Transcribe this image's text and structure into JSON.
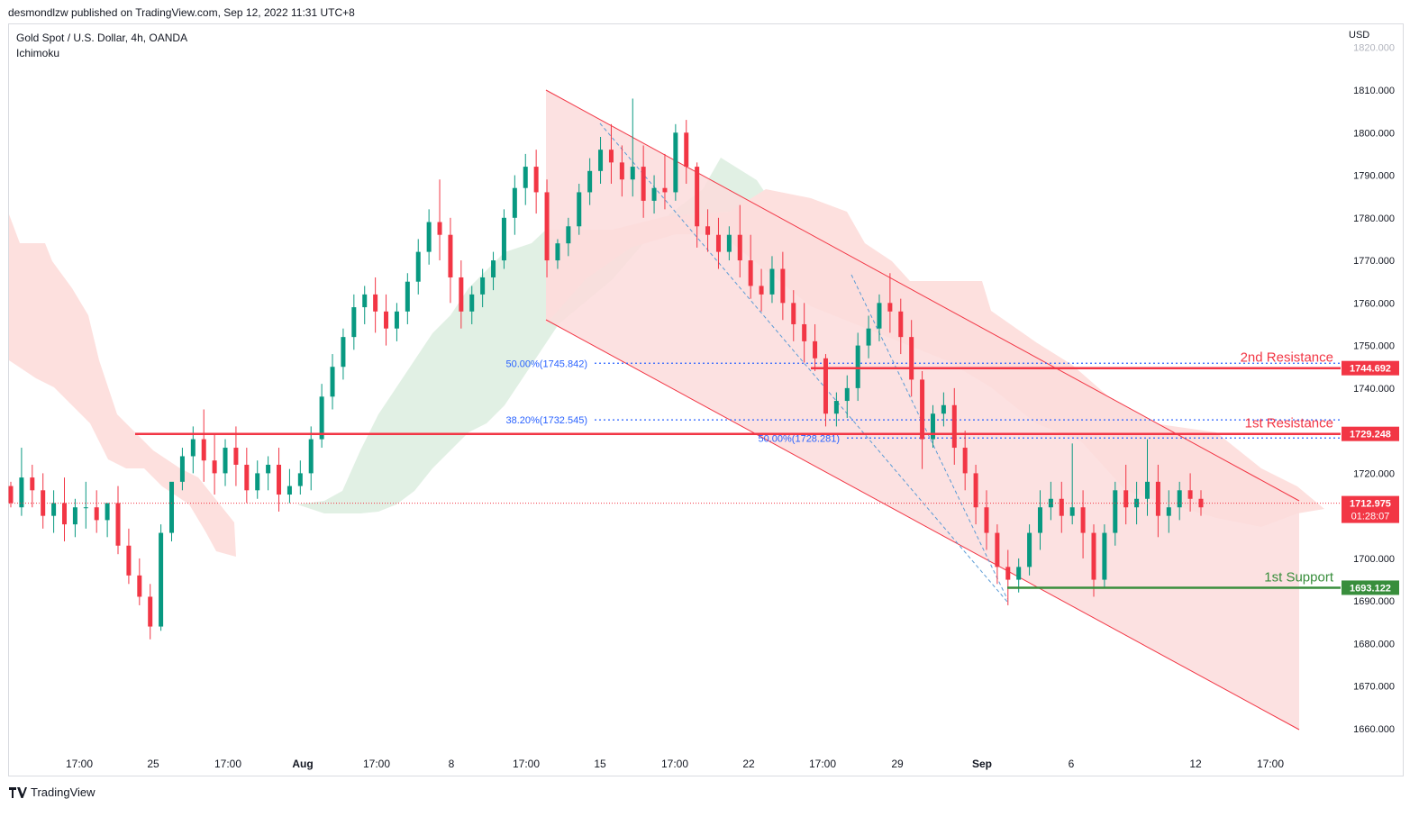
{
  "caption": "desmondlzw published on TradingView.com, Sep 12, 2022 11:31 UTC+8",
  "legend": {
    "symbol": "Gold Spot / U.S. Dollar, 4h, OANDA",
    "indicator": "Ichimoku"
  },
  "currency": "USD",
  "footer": {
    "brand": "TradingView"
  },
  "chart_data": {
    "type": "candlestick",
    "title": "Gold Spot / U.S. Dollar, 4h, OANDA",
    "y_unit": "USD",
    "ylim": [
      1656,
      1824
    ],
    "y_ticks": [
      "1810.000",
      "1800.000",
      "1790.000",
      "1780.000",
      "1770.000",
      "1760.000",
      "1750.000",
      "1740.000",
      "1730.000",
      "1720.000",
      "1710.000",
      "1700.000",
      "1690.000",
      "1680.000",
      "1670.000",
      "1660.000"
    ],
    "y_tick_partial": "1820.000",
    "x_ticks": [
      "17:00",
      "25",
      "17:00",
      "Aug",
      "17:00",
      "8",
      "17:00",
      "15",
      "17:00",
      "22",
      "17:00",
      "29",
      "Sep",
      "6",
      "12",
      "17:00"
    ],
    "x_tick_bold": [
      "Aug",
      "Sep"
    ],
    "price_labels": [
      {
        "value": "1744.692",
        "color": "#f23645"
      },
      {
        "value": "1729.248",
        "color": "#f23645"
      },
      {
        "value": "1712.975",
        "sub": "01:28:07",
        "color": "#f23645"
      },
      {
        "value": "1693.122",
        "color": "#388e3c"
      }
    ],
    "levels": [
      {
        "label": "2nd Resistance",
        "price": 1744.692,
        "color": "#f23645"
      },
      {
        "label": "1st Resistance",
        "price": 1729.248,
        "color": "#f23645"
      },
      {
        "label": "1st Support",
        "price": 1693.122,
        "color": "#388e3c"
      }
    ],
    "fib_labels": [
      {
        "text": "50.00%(1745.842)",
        "price": 1745.842
      },
      {
        "text": "38.20%(1732.545)",
        "price": 1732.545
      },
      {
        "text": "50.00%(1728.281)",
        "price": 1728.281
      }
    ],
    "current_price": 1712.975,
    "colors": {
      "up": "#089981",
      "down": "#f23645",
      "channel": "#f8c9cc",
      "cloud_bear": "#fde0de",
      "cloud_bull": "#e1f0e4",
      "support": "#388e3c",
      "fib": "#2962ff"
    },
    "candles": [
      [
        1717,
        1718,
        1713,
        1712
      ],
      [
        1712,
        1726,
        1719,
        1710
      ],
      [
        1719,
        1722,
        1716,
        1712
      ],
      [
        1716,
        1720,
        1710,
        1707
      ],
      [
        1710,
        1716,
        1713,
        1706
      ],
      [
        1713,
        1719,
        1708,
        1704
      ],
      [
        1708,
        1714,
        1712,
        1705
      ],
      [
        1712,
        1718,
        1712,
        1707
      ],
      [
        1712,
        1716,
        1709,
        1706
      ],
      [
        1709,
        1713,
        1713,
        1705
      ],
      [
        1713,
        1717,
        1703,
        1701
      ],
      [
        1703,
        1707,
        1696,
        1694
      ],
      [
        1696,
        1700,
        1691,
        1689
      ],
      [
        1691,
        1694,
        1684,
        1681
      ],
      [
        1684,
        1708,
        1706,
        1683
      ],
      [
        1706,
        1716,
        1718,
        1704
      ],
      [
        1718,
        1726,
        1724,
        1716
      ],
      [
        1724,
        1731,
        1728,
        1720
      ],
      [
        1728,
        1735,
        1723,
        1718
      ],
      [
        1723,
        1729,
        1720,
        1715
      ],
      [
        1720,
        1728,
        1726,
        1717
      ],
      [
        1726,
        1731,
        1722,
        1717
      ],
      [
        1722,
        1726,
        1716,
        1713
      ],
      [
        1716,
        1723,
        1720,
        1714
      ],
      [
        1720,
        1724,
        1722,
        1716
      ],
      [
        1722,
        1726,
        1715,
        1711
      ],
      [
        1715,
        1721,
        1717,
        1713
      ],
      [
        1717,
        1723,
        1720,
        1715
      ],
      [
        1720,
        1731,
        1728,
        1716
      ],
      [
        1728,
        1741,
        1738,
        1726
      ],
      [
        1738,
        1748,
        1745,
        1735
      ],
      [
        1745,
        1754,
        1752,
        1742
      ],
      [
        1752,
        1762,
        1759,
        1749
      ],
      [
        1759,
        1764,
        1762,
        1755
      ],
      [
        1762,
        1766,
        1758,
        1753
      ],
      [
        1758,
        1762,
        1754,
        1750
      ],
      [
        1754,
        1760,
        1758,
        1751
      ],
      [
        1758,
        1767,
        1765,
        1755
      ],
      [
        1765,
        1775,
        1772,
        1762
      ],
      [
        1772,
        1782,
        1779,
        1769
      ],
      [
        1779,
        1789,
        1776,
        1770
      ],
      [
        1776,
        1780,
        1766,
        1760
      ],
      [
        1766,
        1770,
        1758,
        1754
      ],
      [
        1758,
        1764,
        1762,
        1755
      ],
      [
        1762,
        1768,
        1766,
        1759
      ],
      [
        1766,
        1772,
        1770,
        1763
      ],
      [
        1770,
        1782,
        1780,
        1768
      ],
      [
        1780,
        1790,
        1787,
        1776
      ],
      [
        1787,
        1795,
        1792,
        1783
      ],
      [
        1792,
        1796,
        1786,
        1781
      ],
      [
        1786,
        1789,
        1770,
        1766
      ],
      [
        1770,
        1775,
        1774,
        1768
      ],
      [
        1774,
        1780,
        1778,
        1771
      ],
      [
        1778,
        1788,
        1786,
        1776
      ],
      [
        1786,
        1794,
        1791,
        1783
      ],
      [
        1791,
        1799,
        1796,
        1788
      ],
      [
        1796,
        1802,
        1793,
        1788
      ],
      [
        1793,
        1797,
        1789,
        1785
      ],
      [
        1789,
        1808,
        1792,
        1785
      ],
      [
        1792,
        1797,
        1784,
        1780
      ],
      [
        1784,
        1790,
        1787,
        1781
      ],
      [
        1787,
        1795,
        1786,
        1782
      ],
      [
        1786,
        1802,
        1800,
        1784
      ],
      [
        1800,
        1803,
        1792,
        1788
      ],
      [
        1792,
        1793,
        1778,
        1773
      ],
      [
        1778,
        1782,
        1776,
        1772
      ],
      [
        1776,
        1780,
        1772,
        1768
      ],
      [
        1772,
        1778,
        1776,
        1770
      ],
      [
        1776,
        1783,
        1770,
        1766
      ],
      [
        1770,
        1776,
        1764,
        1761
      ],
      [
        1764,
        1768,
        1762,
        1758
      ],
      [
        1762,
        1771,
        1768,
        1760
      ],
      [
        1768,
        1772,
        1760,
        1756
      ],
      [
        1760,
        1763,
        1755,
        1751
      ],
      [
        1755,
        1760,
        1751,
        1746
      ],
      [
        1751,
        1755,
        1747,
        1744
      ],
      [
        1747,
        1748,
        1734,
        1731
      ],
      [
        1734,
        1739,
        1737,
        1731
      ],
      [
        1737,
        1743,
        1740,
        1733
      ],
      [
        1740,
        1753,
        1750,
        1737
      ],
      [
        1750,
        1757,
        1754,
        1747
      ],
      [
        1754,
        1762,
        1760,
        1751
      ],
      [
        1760,
        1767,
        1758,
        1753
      ],
      [
        1758,
        1761,
        1752,
        1748
      ],
      [
        1752,
        1756,
        1742,
        1738
      ],
      [
        1742,
        1744,
        1728,
        1721
      ],
      [
        1728,
        1736,
        1734,
        1726
      ],
      [
        1734,
        1739,
        1736,
        1731
      ],
      [
        1736,
        1740,
        1726,
        1722
      ],
      [
        1726,
        1730,
        1720,
        1716
      ],
      [
        1720,
        1722,
        1712,
        1708
      ],
      [
        1712,
        1716,
        1706,
        1702
      ],
      [
        1706,
        1708,
        1698,
        1694
      ],
      [
        1698,
        1702,
        1695,
        1689
      ],
      [
        1695,
        1700,
        1698,
        1692
      ],
      [
        1698,
        1708,
        1706,
        1696
      ],
      [
        1706,
        1716,
        1712,
        1702
      ],
      [
        1712,
        1718,
        1714,
        1709
      ],
      [
        1714,
        1718,
        1710,
        1706
      ],
      [
        1710,
        1727,
        1712,
        1708
      ],
      [
        1712,
        1716,
        1706,
        1700
      ],
      [
        1706,
        1708,
        1695,
        1691
      ],
      [
        1695,
        1708,
        1706,
        1693
      ],
      [
        1706,
        1718,
        1716,
        1703
      ],
      [
        1716,
        1722,
        1712,
        1708
      ],
      [
        1712,
        1718,
        1714,
        1708
      ],
      [
        1714,
        1728,
        1718,
        1710
      ],
      [
        1718,
        1722,
        1710,
        1705
      ],
      [
        1710,
        1716,
        1712,
        1706
      ],
      [
        1712,
        1718,
        1716,
        1709
      ],
      [
        1716,
        1720,
        1714,
        1711
      ],
      [
        1714,
        1716,
        1712,
        1710
      ]
    ]
  }
}
